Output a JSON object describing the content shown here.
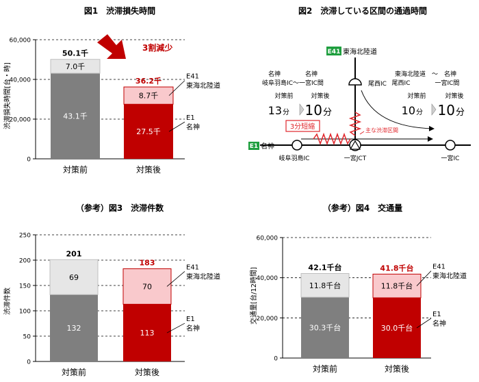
{
  "colors": {
    "gray_dark": "#7f7f7f",
    "gray_light": "#e6e6e6",
    "red_dark": "#c00000",
    "red_light": "#f9c9cc",
    "red_text": "#c00000",
    "e_green": "#1e9e3e"
  },
  "chart_data": [
    {
      "id": "fig1",
      "type": "bar",
      "stacked": true,
      "title": "図1　渋滞損失時間",
      "ylabel": "渋滞損失時間[台・時]",
      "ylim": [
        0,
        60000
      ],
      "yticks": [
        "0",
        "20,000",
        "40,000",
        "60,000"
      ],
      "ytick_values": [
        0,
        20000,
        40000,
        60000
      ],
      "grid": "dashed",
      "categories": [
        "対策前",
        "対策後"
      ],
      "series": [
        {
          "name": "E1 名神",
          "values": [
            43100,
            27500
          ],
          "labels": [
            "43.1千",
            "27.5千"
          ]
        },
        {
          "name": "E41 東海北陸道",
          "values": [
            7000,
            8700
          ],
          "labels": [
            "7.0千",
            "8.7千"
          ]
        }
      ],
      "totals": [
        "50.1千",
        "36.2千"
      ],
      "legend": [
        {
          "code": "E41",
          "name": "東海北陸道"
        },
        {
          "code": "E1",
          "name": "名神"
        }
      ],
      "annotation": "3割減少"
    },
    {
      "id": "fig3",
      "type": "bar",
      "stacked": true,
      "title": "（参考）図3　渋滞件数",
      "ylabel": "渋滞件数",
      "ylim": [
        0,
        250
      ],
      "yticks": [
        "0",
        "50",
        "100",
        "150",
        "200",
        "250"
      ],
      "ytick_values": [
        0,
        50,
        100,
        150,
        200,
        250
      ],
      "grid": "dashed",
      "categories": [
        "対策前",
        "対策後"
      ],
      "series": [
        {
          "name": "E1 名神",
          "values": [
            132,
            113
          ],
          "labels": [
            "132",
            "113"
          ]
        },
        {
          "name": "E41 東海北陸道",
          "values": [
            69,
            70
          ],
          "labels": [
            "69",
            "70"
          ]
        }
      ],
      "totals": [
        "201",
        "183"
      ],
      "legend": [
        {
          "code": "E41",
          "name": "東海北陸道"
        },
        {
          "code": "E1",
          "name": "名神"
        }
      ]
    },
    {
      "id": "fig4",
      "type": "bar",
      "stacked": true,
      "title": "（参考）図4　交通量",
      "ylabel": "交通量[台/12時間]",
      "ylim": [
        0,
        60000
      ],
      "yticks": [
        "0",
        "20,000",
        "40,000",
        "60,000"
      ],
      "ytick_values": [
        0,
        20000,
        40000,
        60000
      ],
      "grid": "dashed",
      "categories": [
        "対策前",
        "対策後"
      ],
      "series": [
        {
          "name": "E1 名神",
          "values": [
            30300,
            30000
          ],
          "labels": [
            "30.3千台",
            "30.0千台"
          ]
        },
        {
          "name": "E41 東海北陸道",
          "values": [
            11800,
            11800
          ],
          "labels": [
            "11.8千台",
            "11.8千台"
          ]
        }
      ],
      "totals": [
        "42.1千台",
        "41.8千台"
      ],
      "legend": [
        {
          "code": "E41",
          "name": "東海北陸道"
        },
        {
          "code": "E1",
          "name": "名神"
        }
      ]
    }
  ],
  "diagram": {
    "title": "図2　渋滞している区間の通過時間",
    "e41_badge": "E41",
    "e41_name": "東海北陸道",
    "e1_badge": "E1",
    "e1_name": "名神",
    "left_route_line1": "名神　　　　名神",
    "left_route_line2": "岐阜羽島IC～一宮IC間",
    "right_route_line1": "東海北陸道　～　名神",
    "right_route_line2": "尾西IC　　　　一宮IC間",
    "before_label": "対策前",
    "after_label": "対策後",
    "left_before": "13",
    "left_after": "10",
    "right_before": "10",
    "right_after": "10",
    "unit": "分",
    "shortened": "3分短縮",
    "congestion": "主な渋滞区間",
    "ic_bisai": "尾西IC",
    "ic_gifu": "岐阜羽島IC",
    "jct_ichinomiya": "一宮JCT",
    "ic_ichinomiya": "一宮IC"
  }
}
